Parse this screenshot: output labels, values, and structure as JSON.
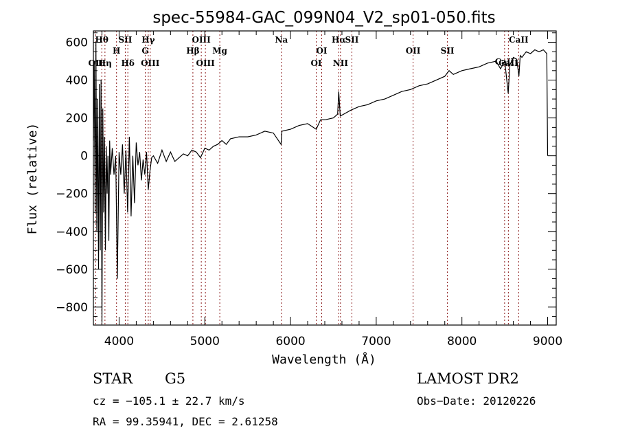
{
  "chart_data": {
    "type": "line",
    "title": "spec-55984-GAC_099N04_V2_sp01-050.fits",
    "xlabel": "Wavelength (Å)",
    "ylabel": "Flux (relative)",
    "xlim": [
      3700,
      9100
    ],
    "ylim": [
      -895,
      660
    ],
    "xticks": [
      4000,
      5000,
      6000,
      7000,
      8000,
      9000
    ],
    "yticks": [
      -800,
      -600,
      -400,
      -200,
      0,
      200,
      400,
      600
    ],
    "grid": false,
    "line_color": "#000000",
    "marker_color": "#8b1a1a",
    "series": [
      {
        "name": "flux",
        "x": [
          3700,
          3710,
          3720,
          3730,
          3740,
          3750,
          3760,
          3770,
          3780,
          3790,
          3800,
          3810,
          3820,
          3830,
          3840,
          3850,
          3860,
          3870,
          3880,
          3890,
          3900,
          3920,
          3940,
          3960,
          3980,
          4000,
          4020,
          4040,
          4060,
          4080,
          4100,
          4120,
          4140,
          4160,
          4180,
          4200,
          4220,
          4240,
          4260,
          4280,
          4300,
          4320,
          4340,
          4360,
          4380,
          4400,
          4450,
          4500,
          4550,
          4600,
          4650,
          4700,
          4750,
          4800,
          4850,
          4900,
          4950,
          5000,
          5050,
          5100,
          5150,
          5200,
          5250,
          5300,
          5400,
          5500,
          5600,
          5700,
          5800,
          5890,
          5900,
          6000,
          6100,
          6200,
          6300,
          6350,
          6400,
          6500,
          6550,
          6563,
          6580,
          6700,
          6800,
          6900,
          7000,
          7100,
          7200,
          7300,
          7400,
          7500,
          7600,
          7700,
          7800,
          7850,
          7900,
          8000,
          8100,
          8200,
          8300,
          8400,
          8450,
          8500,
          8540,
          8560,
          8600,
          8640,
          8665,
          8680,
          8700,
          8750,
          8800,
          8850,
          8900,
          8950,
          8990,
          9000
        ],
        "y": [
          80,
          500,
          -300,
          600,
          -400,
          300,
          -600,
          380,
          -500,
          400,
          -880,
          250,
          -300,
          100,
          -500,
          50,
          -200,
          0,
          -450,
          80,
          -100,
          40,
          -100,
          0,
          -650,
          20,
          -100,
          60,
          -200,
          30,
          -300,
          100,
          -320,
          0,
          -250,
          70,
          -50,
          20,
          -130,
          -20,
          -100,
          20,
          -180,
          -80,
          -10,
          0,
          -40,
          30,
          -30,
          20,
          -30,
          -10,
          10,
          0,
          30,
          20,
          -10,
          40,
          30,
          50,
          60,
          80,
          60,
          90,
          100,
          100,
          110,
          130,
          120,
          60,
          130,
          140,
          160,
          170,
          140,
          190,
          190,
          200,
          220,
          340,
          210,
          240,
          260,
          270,
          290,
          300,
          320,
          340,
          350,
          370,
          380,
          400,
          420,
          450,
          430,
          450,
          460,
          470,
          490,
          500,
          460,
          500,
          330,
          480,
          520,
          510,
          420,
          530,
          520,
          550,
          540,
          560,
          550,
          560,
          540,
          0
        ]
      }
    ],
    "line_markers": [
      {
        "label": "OII",
        "wl": 3727,
        "row": 3
      },
      {
        "label": "Hθ",
        "wl": 3798,
        "row": 1
      },
      {
        "label": "Hη",
        "wl": 3835,
        "row": 3
      },
      {
        "label": "H",
        "wl": 3970,
        "row": 2
      },
      {
        "label": "SII",
        "wl": 4072,
        "row": 1
      },
      {
        "label": "Hδ",
        "wl": 4102,
        "row": 3
      },
      {
        "label": "G",
        "wl": 4305,
        "row": 2
      },
      {
        "label": "Hγ",
        "wl": 4340,
        "row": 1
      },
      {
        "label": "OIII",
        "wl": 4363,
        "row": 3
      },
      {
        "label": "Hβ",
        "wl": 4861,
        "row": 2
      },
      {
        "label": "OIII",
        "wl": 4959,
        "row": 1
      },
      {
        "label": "OIII",
        "wl": 5007,
        "row": 3
      },
      {
        "label": "Mg",
        "wl": 5175,
        "row": 2
      },
      {
        "label": "Na",
        "wl": 5894,
        "row": 1
      },
      {
        "label": "OI",
        "wl": 6300,
        "row": 3
      },
      {
        "label": "OI",
        "wl": 6364,
        "row": 2
      },
      {
        "label": "Hα",
        "wl": 6563,
        "row": 1
      },
      {
        "label": "NII",
        "wl": 6583,
        "row": 3
      },
      {
        "label": "SII",
        "wl": 6716,
        "row": 1
      },
      {
        "label": "OII",
        "wl": 7430,
        "row": 2
      },
      {
        "label": "SII",
        "wl": 7831,
        "row": 2
      },
      {
        "label": "CaII",
        "wl": 8498,
        "row": 4
      },
      {
        "label": "CaII",
        "wl": 8542,
        "row": 3
      },
      {
        "label": "CaII",
        "wl": 8662,
        "row": 1
      }
    ]
  },
  "info": {
    "object_class": "STAR",
    "subclass": "G5",
    "redshift_line": "cz = −105.1 ± 22.7 km/s",
    "coords_line": "RA =  99.35941, DEC =   2.61258",
    "survey": "LAMOST DR2",
    "obs_date_line": "Obs−Date: 20120226"
  }
}
